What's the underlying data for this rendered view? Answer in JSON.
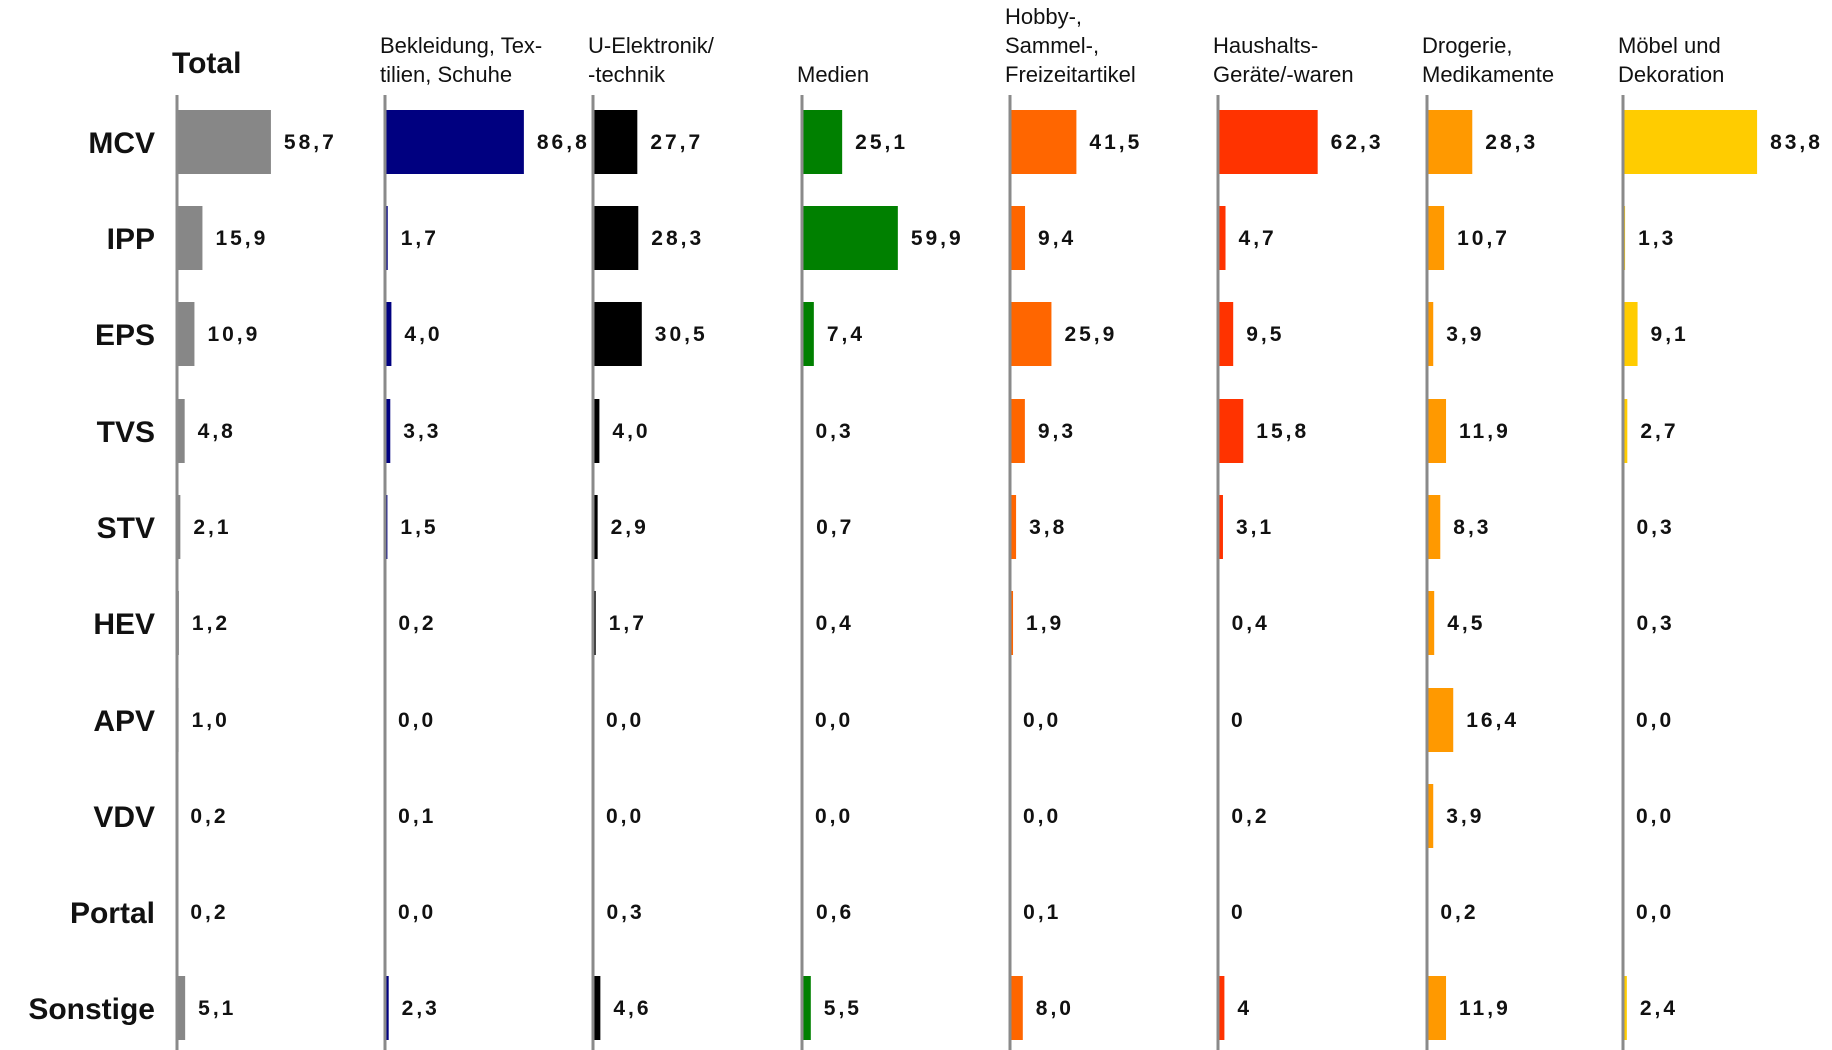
{
  "chart_data": {
    "type": "bar",
    "orientation": "horizontal",
    "grid": false,
    "legend": "none",
    "categories": [
      "MCV",
      "IPP",
      "EPS",
      "TVS",
      "STV",
      "HEV",
      "APV",
      "VDV",
      "Portal",
      "Sonstige"
    ],
    "series": [
      {
        "name": "Total",
        "color": "#878787",
        "values": [
          58.7,
          15.9,
          10.9,
          4.8,
          2.1,
          1.2,
          1.0,
          0.2,
          0.2,
          5.1
        ],
        "labels": [
          "58,7",
          "15,9",
          "10,9",
          "4,8",
          "2,1",
          "1,2",
          "1,0",
          "0,2",
          "0,2",
          "5,1"
        ]
      },
      {
        "name": "Bekleidung, Tex-|tilien, Schuhe",
        "color": "#000080",
        "values": [
          86.8,
          1.7,
          4.0,
          3.3,
          1.5,
          0.2,
          0.0,
          0.1,
          0.0,
          2.3
        ],
        "labels": [
          "86,8",
          "1,7",
          "4,0",
          "3,3",
          "1,5",
          "0,2",
          "0,0",
          "0,1",
          "0,0",
          "2,3"
        ]
      },
      {
        "name": "U-Elektronik/|-technik",
        "color": "#000000",
        "values": [
          27.7,
          28.3,
          30.5,
          4.0,
          2.9,
          1.7,
          0.0,
          0.0,
          0.3,
          4.6
        ],
        "labels": [
          "27,7",
          "28,3",
          "30,5",
          "4,0",
          "2,9",
          "1,7",
          "0,0",
          "0,0",
          "0,3",
          "4,6"
        ]
      },
      {
        "name": "Medien",
        "color": "#008000",
        "values": [
          25.1,
          59.9,
          7.4,
          0.3,
          0.7,
          0.4,
          0.0,
          0.0,
          0.6,
          5.5
        ],
        "labels": [
          "25,1",
          "59,9",
          "7,4",
          "0,3",
          "0,7",
          "0,4",
          "0,0",
          "0,0",
          "0,6",
          "5,5"
        ]
      },
      {
        "name": "Hobby-,|Sammel-,|Freizeitartikel",
        "color": "#ff6600",
        "values": [
          41.5,
          9.4,
          25.9,
          9.3,
          3.8,
          1.9,
          0.0,
          0.0,
          0.1,
          8.0
        ],
        "labels": [
          "41,5",
          "9,4",
          "25,9",
          "9,3",
          "3,8",
          "1,9",
          "0,0",
          "0,0",
          "0,1",
          "8,0"
        ]
      },
      {
        "name": "Haushalts-|Geräte/-waren",
        "color": "#ff3300",
        "values": [
          62.3,
          4.7,
          9.5,
          15.8,
          3.1,
          0.4,
          0,
          0.2,
          0,
          4
        ],
        "labels": [
          "62,3",
          "4,7",
          "9,5",
          "15,8",
          "3,1",
          "0,4",
          "0",
          "0,2",
          "0",
          "4"
        ]
      },
      {
        "name": "Drogerie,|Medikamente",
        "color": "#ff9900",
        "values": [
          28.3,
          10.7,
          3.9,
          11.9,
          8.3,
          4.5,
          16.4,
          3.9,
          0.2,
          11.9
        ],
        "labels": [
          "28,3",
          "10,7",
          "3,9",
          "11,9",
          "8,3",
          "4,5",
          "16,4",
          "3,9",
          "0,2",
          "11,9"
        ]
      },
      {
        "name": "Möbel und|Dekoration",
        "color": "#ffcc00",
        "values": [
          83.8,
          1.3,
          9.1,
          2.7,
          0.3,
          0.3,
          0.0,
          0.0,
          0.0,
          2.4
        ],
        "labels": [
          "83,8",
          "1,3",
          "9,1",
          "2,7",
          "0,3",
          "0,3",
          "0,0",
          "0,0",
          "0,0",
          "2,4"
        ]
      }
    ]
  }
}
